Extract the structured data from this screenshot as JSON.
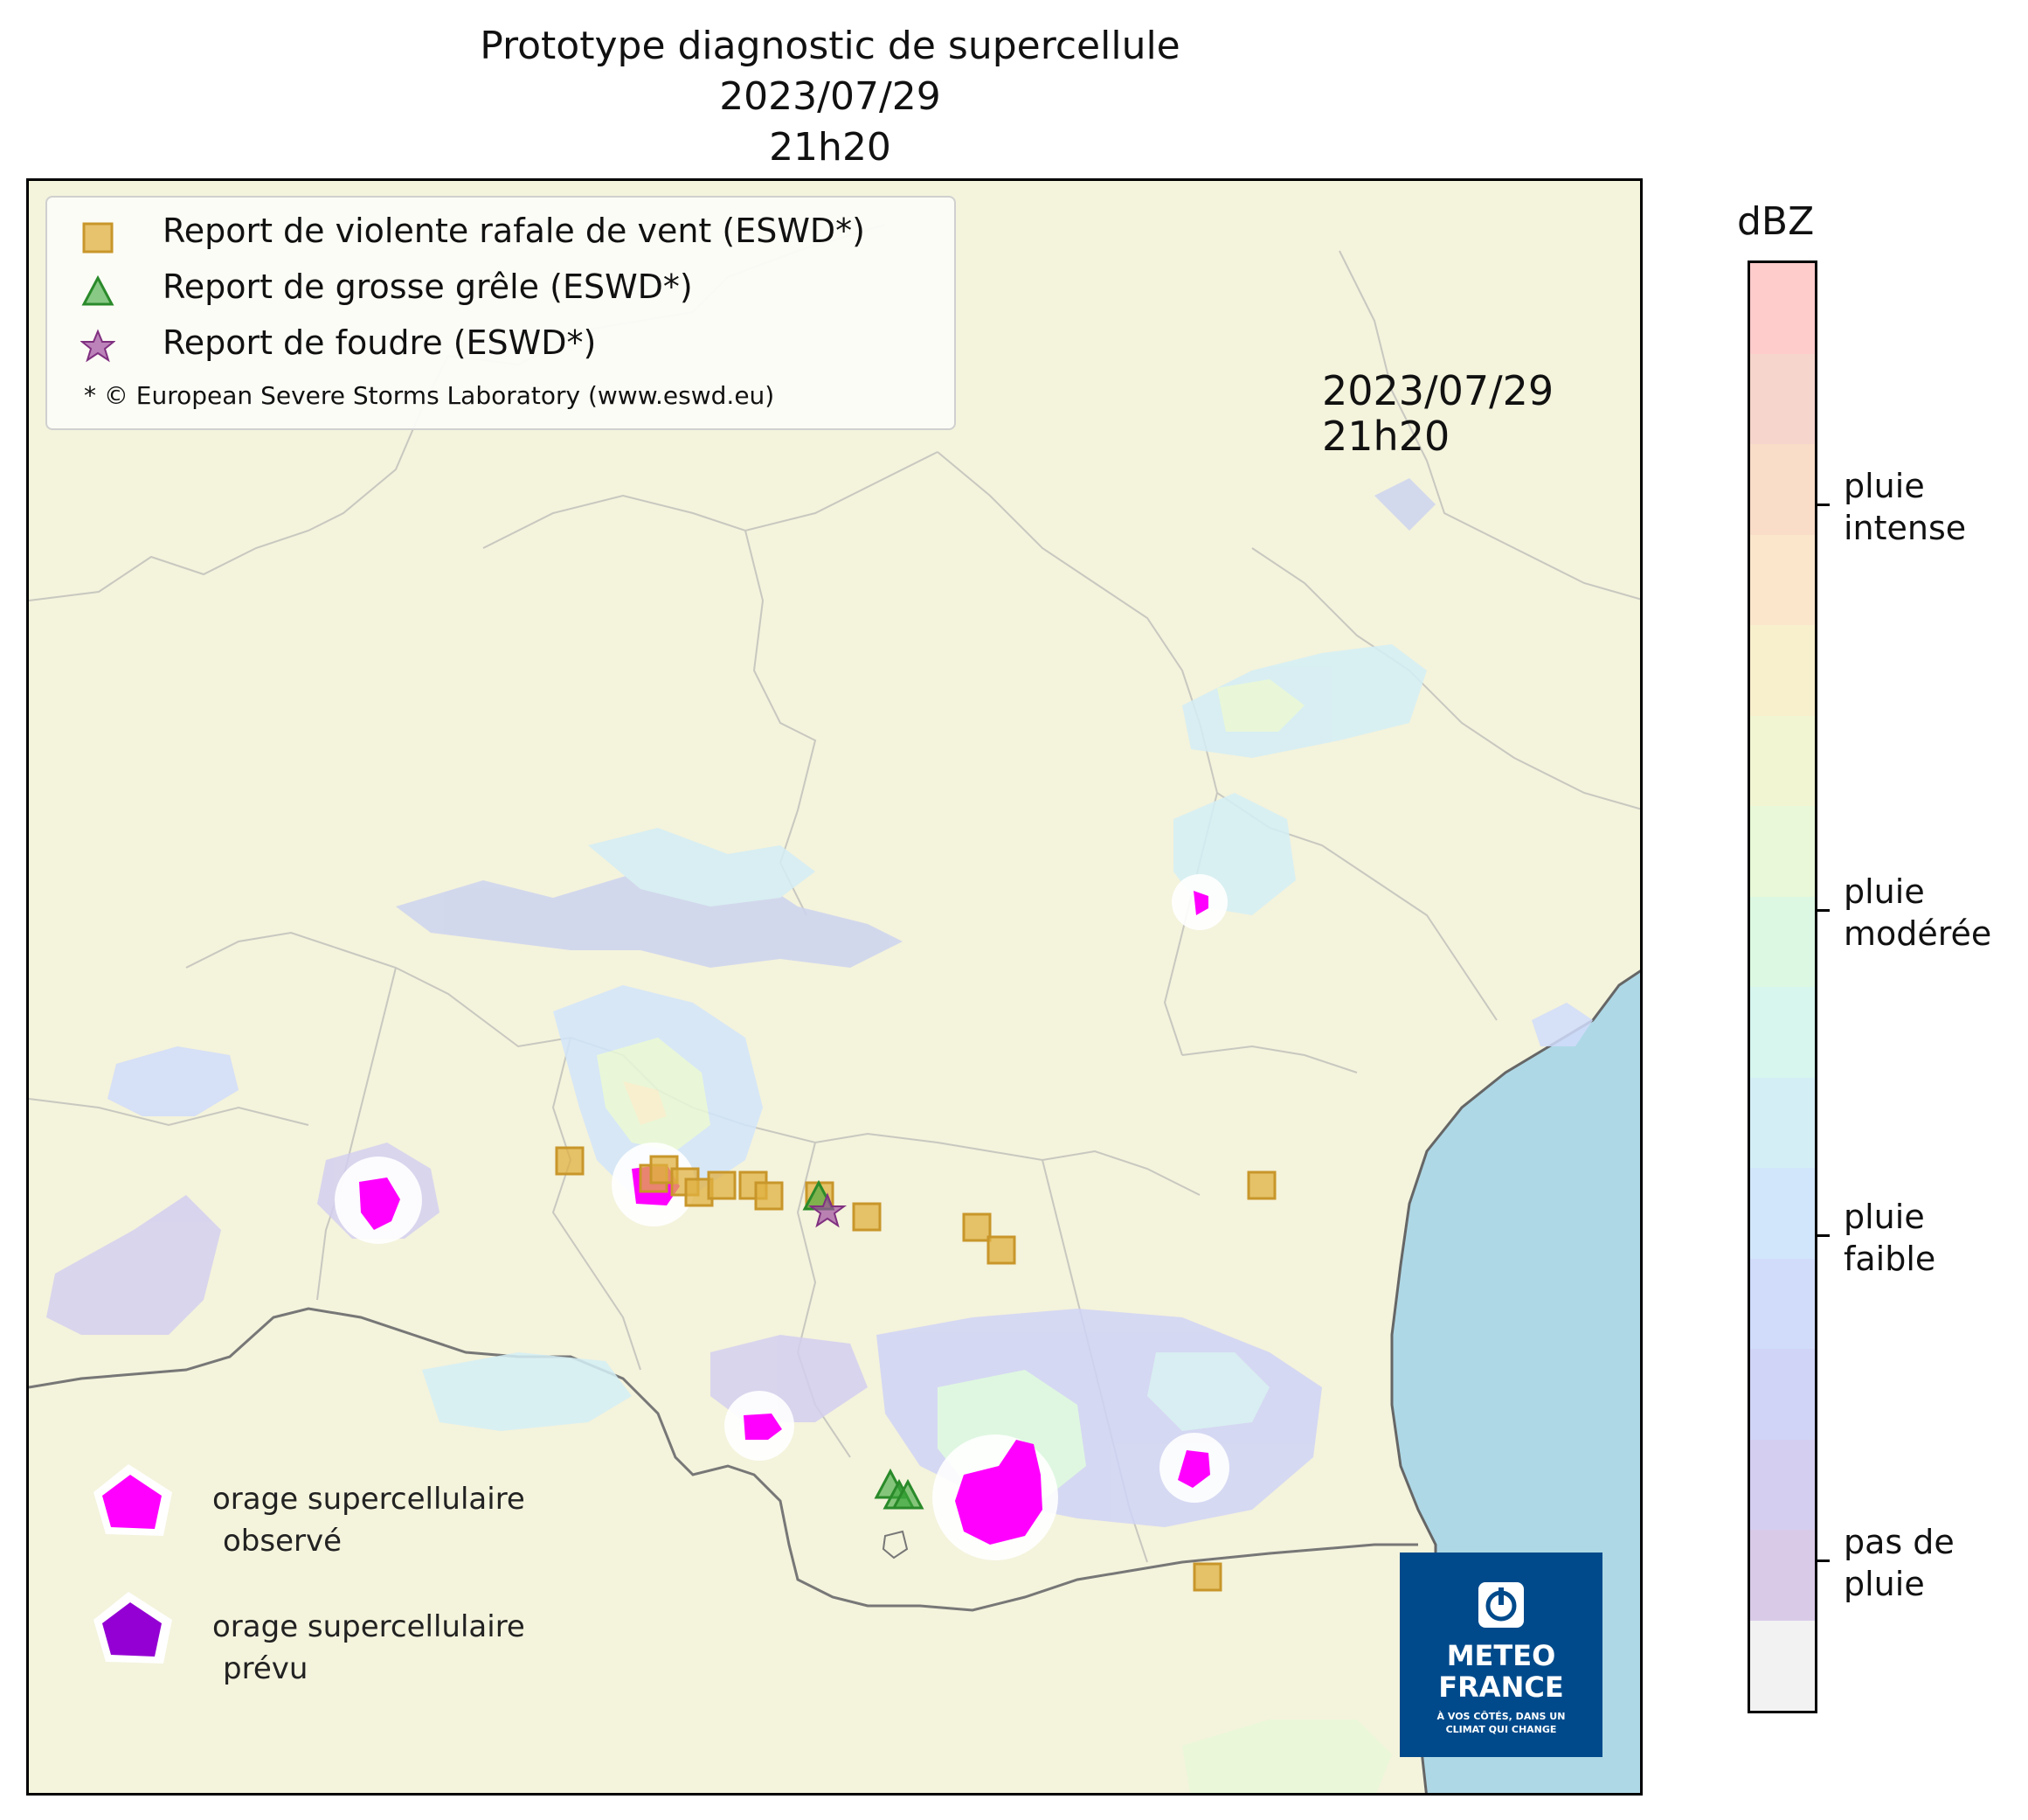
{
  "title": {
    "line1": "Prototype diagnostic de supercellule",
    "line2": "2023/07/29",
    "line3": "21h20"
  },
  "map_timestamp": {
    "date": "2023/07/29",
    "time": "21h20"
  },
  "legend": {
    "items": [
      {
        "symbol": "square",
        "color": "#e0b040",
        "label": "Report de violente rafale de vent (ESWD*)"
      },
      {
        "symbol": "triangle",
        "color": "#3aa63a",
        "label": "Report de grosse grêle (ESWD*)"
      },
      {
        "symbol": "star",
        "color": "#a050a0",
        "label": "Report de foudre (ESWD*)"
      }
    ],
    "credit": "* © European Severe Storms Laboratory (www.eswd.eu)"
  },
  "supercell_legend": {
    "observed": {
      "line1": "orage supercellulaire",
      "line2": "observé",
      "color": "#ff00ff"
    },
    "forecast": {
      "line1": "orage supercellulaire",
      "line2": "prévu",
      "color": "#9400d3"
    }
  },
  "colorbar": {
    "title": "dBZ",
    "labels": [
      {
        "line1": "pluie",
        "line2": "intense"
      },
      {
        "line1": "pluie",
        "line2": "modérée"
      },
      {
        "line1": "pluie",
        "line2": "faible"
      },
      {
        "line1": "pas de",
        "line2": "pluie"
      }
    ],
    "colors": [
      "#ffcccc",
      "#f5d5cc",
      "#f9ddc8",
      "#fbe6cc",
      "#f8efcc",
      "#f2f5d2",
      "#e8f8d8",
      "#dcf8e2",
      "#d6f6ee",
      "#d4eef6",
      "#d2e6fb",
      "#d0dcfa",
      "#d0d4f6",
      "#d4cff0",
      "#d9cbe8",
      "#f2f2f2"
    ]
  },
  "colors": {
    "land": "#f4f3dc",
    "sea": "#aed8e6",
    "supercell_observed": "#ff00ff",
    "supercell_halo": "#ffffff",
    "gust_report": "#e0b040",
    "hail_report": "#3aa63a",
    "lightning_report": "#a050a0"
  },
  "logo": {
    "line1": "METEO",
    "line2": "FRANCE",
    "tagline1": "À VOS CÔTÉS, DANS UN",
    "tagline2": "CLIMAT QUI CHANGE"
  }
}
